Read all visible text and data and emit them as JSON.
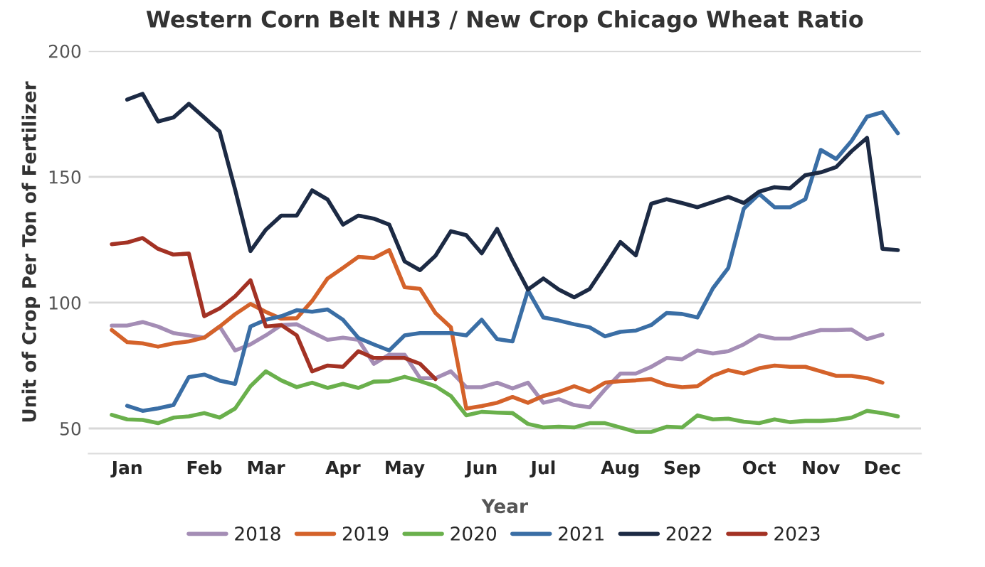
{
  "chart_data": {
    "type": "line",
    "title": "Western Corn Belt NH3 / New Crop Chicago Wheat Ratio",
    "ylabel": "Unit of Crop Per Ton of Fertilizer",
    "legend_title": "Year",
    "categories": [
      null,
      "Jan",
      null,
      null,
      null,
      null,
      "Feb",
      null,
      null,
      null,
      "Mar",
      null,
      null,
      null,
      null,
      "Apr",
      null,
      null,
      null,
      "May",
      null,
      null,
      null,
      null,
      "Jun",
      null,
      null,
      null,
      "Jul",
      null,
      null,
      null,
      null,
      "Aug",
      null,
      null,
      null,
      "Sep",
      null,
      null,
      null,
      null,
      "Oct",
      null,
      null,
      null,
      "Nov",
      null,
      null,
      null,
      "Dec",
      null
    ],
    "series": [
      {
        "name": "2018",
        "color": "#a48db5",
        "values": [
          90.9,
          90.9,
          92.3,
          90.5,
          87.9,
          87,
          86.1,
          90.5,
          81,
          83.4,
          87,
          91.1,
          91.4,
          88.2,
          85.2,
          86.1,
          85.2,
          75.7,
          79.3,
          79.3,
          70,
          70,
          72.7,
          66.4,
          66.4,
          68.2,
          65.9,
          68.2,
          60.2,
          61.6,
          59.3,
          58.4,
          65.5,
          71.8,
          71.8,
          74.5,
          78,
          77.5,
          81,
          79.8,
          80.7,
          83.4,
          87,
          85.7,
          85.7,
          87.5,
          89.1,
          89.1,
          89.3,
          85.5,
          87.3,
          null
        ]
      },
      {
        "name": "2019",
        "color": "#d4622a",
        "values": [
          89.1,
          84.3,
          83.8,
          82.5,
          83.8,
          84.6,
          86.1,
          90.5,
          95.4,
          99.5,
          96.3,
          93.6,
          93.8,
          100.7,
          109.6,
          113.8,
          118.2,
          117.7,
          120.9,
          106.1,
          105.5,
          95.9,
          90.2,
          57.9,
          58.9,
          60.2,
          62.5,
          60.2,
          62.9,
          64.5,
          66.8,
          64.6,
          68.2,
          68.8,
          69.1,
          69.6,
          67.3,
          66.4,
          66.8,
          70.9,
          73.2,
          71.8,
          73.9,
          75,
          74.5,
          74.5,
          72.7,
          70.9,
          70.9,
          70,
          68.2,
          null
        ]
      },
      {
        "name": "2020",
        "color": "#6ab04c",
        "values": [
          55.4,
          53.6,
          53.4,
          52.1,
          54.3,
          54.8,
          56.1,
          54.3,
          57.9,
          66.8,
          72.7,
          69.1,
          66.4,
          68.2,
          66.1,
          67.7,
          66.1,
          68.6,
          68.8,
          70.5,
          68.8,
          66.8,
          62.9,
          55.2,
          56.6,
          56.3,
          56.1,
          51.8,
          50.4,
          50.7,
          50.4,
          52.1,
          52.1,
          50.4,
          48.6,
          48.6,
          50.7,
          50.4,
          55.2,
          53.6,
          53.9,
          52.7,
          52.1,
          53.6,
          52.5,
          53,
          53,
          53.4,
          54.3,
          57,
          56.1,
          54.8
        ]
      },
      {
        "name": "2021",
        "color": "#3a6ea5",
        "values": [
          null,
          59,
          57,
          58,
          59.3,
          70.4,
          71.4,
          69,
          67.7,
          90.5,
          93.2,
          94.6,
          97,
          96.4,
          97.3,
          93.2,
          86,
          83.4,
          81,
          87,
          87.9,
          87.9,
          87.9,
          87,
          93.2,
          85.5,
          84.6,
          104.8,
          94.1,
          92.9,
          91.4,
          90.2,
          86.6,
          88.4,
          88.9,
          91.1,
          95.9,
          95.5,
          94.1,
          105.7,
          113.8,
          137.3,
          143.2,
          137.9,
          137.9,
          141.1,
          160.7,
          157.1,
          164.3,
          173.9,
          175.7,
          167.3
        ]
      },
      {
        "name": "2022",
        "color": "#1c2a44",
        "values": [
          null,
          180.7,
          183,
          172,
          173.6,
          179,
          173.6,
          168,
          145,
          120.5,
          129,
          134.6,
          134.6,
          144.6,
          141,
          131,
          134.6,
          133.4,
          131,
          116.4,
          112.9,
          118.6,
          128.4,
          126.8,
          119.6,
          129.3,
          116.8,
          105.2,
          109.6,
          105.2,
          102.1,
          105.4,
          114.6,
          124.1,
          118.8,
          139.3,
          141.1,
          139.6,
          137.9,
          140,
          142,
          139.6,
          144.1,
          145.9,
          145.4,
          150.7,
          151.8,
          153.9,
          160.2,
          165.5,
          121.4,
          120.9
        ]
      },
      {
        "name": "2023",
        "color": "#a33224",
        "values": [
          123.2,
          123.9,
          125.7,
          121.4,
          119.1,
          119.5,
          94.6,
          97.7,
          102.5,
          108.9,
          90.5,
          91.1,
          87,
          72.7,
          75,
          74.5,
          80.7,
          78,
          78,
          78,
          75.7,
          69.6,
          null,
          null,
          null,
          null,
          null,
          null,
          null,
          null,
          null,
          null,
          null,
          null,
          null,
          null,
          null,
          null,
          null,
          null,
          null,
          null,
          null,
          null,
          null,
          null,
          null,
          null,
          null,
          null,
          null,
          null
        ]
      }
    ],
    "ylim": [
      40,
      200
    ],
    "yticks": [
      50,
      100,
      150,
      200
    ],
    "grid": "y",
    "legend": "bottom",
    "line_style": "solid",
    "marker": "none"
  }
}
